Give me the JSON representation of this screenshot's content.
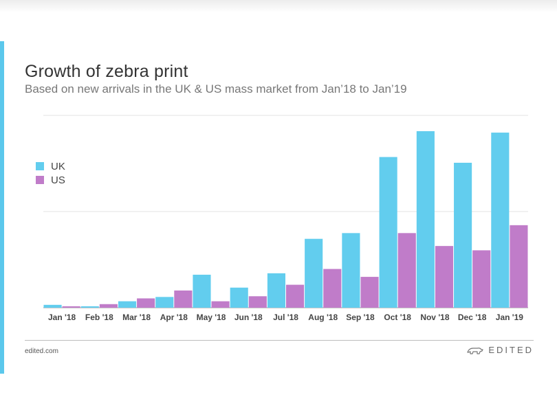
{
  "chart_data": {
    "type": "bar",
    "title": "Growth of zebra print",
    "subtitle": "Based on new arrivals in the UK & US mass market from Jan’18 to Jan’19",
    "categories": [
      "Jan '18",
      "Feb '18",
      "Mar '18",
      "Apr '18",
      "May '18",
      "Jun '18",
      "Jul '18",
      "Aug '18",
      "Sep '18",
      "Oct '18",
      "Nov '18",
      "Dec '18",
      "Jan '19"
    ],
    "series": [
      {
        "name": "UK",
        "color": "#62cdee",
        "values": [
          2,
          1,
          4.5,
          7.5,
          23,
          14,
          24,
          48,
          52,
          105,
          123,
          101,
          122
        ]
      },
      {
        "name": "US",
        "color": "#c07cc9",
        "values": [
          1,
          2.5,
          6.5,
          12,
          4.5,
          8,
          16,
          27,
          21.5,
          52,
          43,
          40,
          57.5
        ]
      }
    ],
    "ylim": [
      0,
      134
    ],
    "gridlines": [
      0,
      67,
      134
    ],
    "xlabel": "",
    "ylabel": "",
    "legend": "left"
  },
  "footer": {
    "source": "edited.com",
    "brand": "EDITED",
    "logo_icon": "bear-logo-icon"
  }
}
